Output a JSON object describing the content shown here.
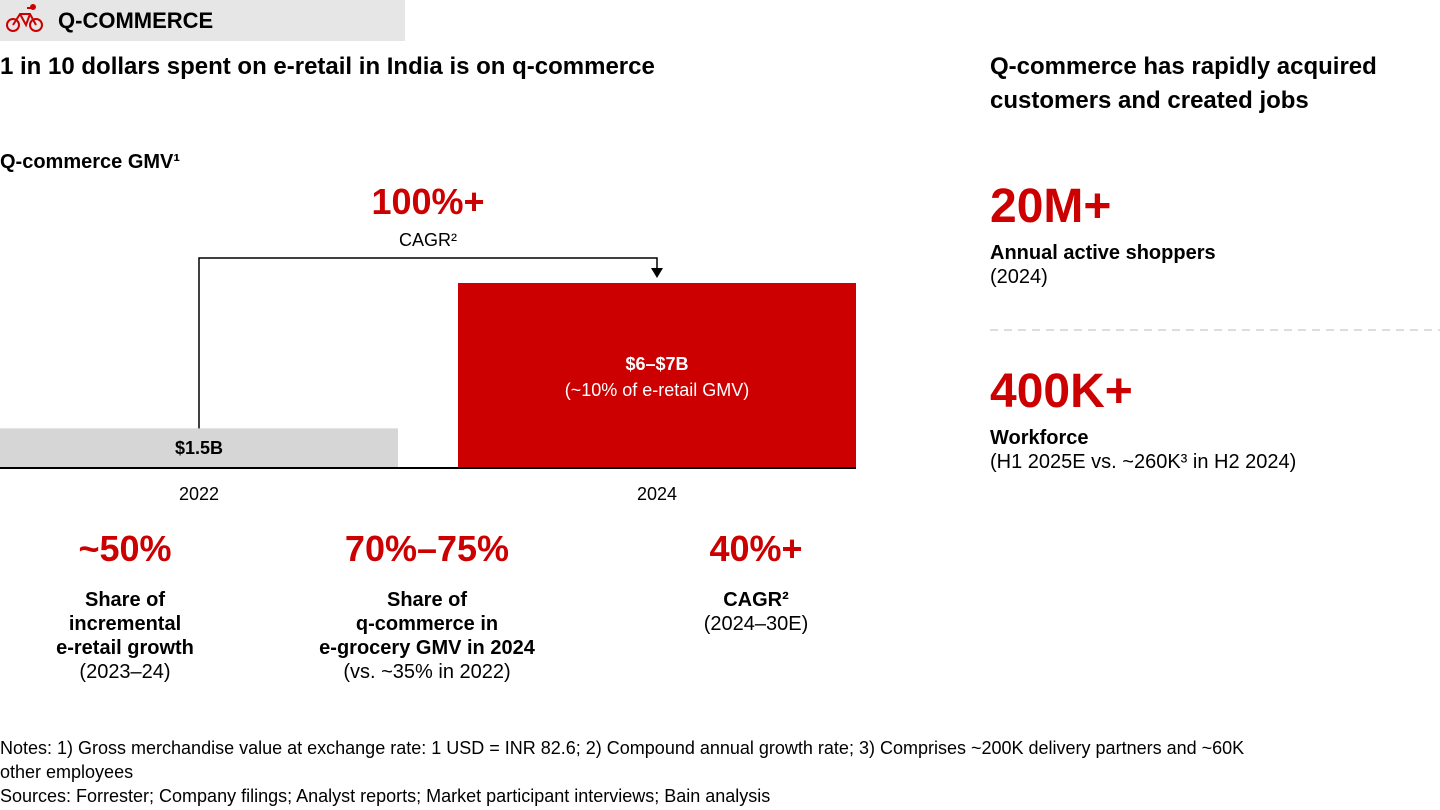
{
  "header": {
    "label": "Q-COMMERCE"
  },
  "title_left": "1 in 10 dollars spent on e-retail in India is on q-commerce",
  "title_right": [
    "Q-commerce has rapidly acquired",
    "customers and created jobs"
  ],
  "chart_data": {
    "type": "bar",
    "title": "Q-commerce GMV¹",
    "categories": [
      "2022",
      "2024"
    ],
    "values": [
      1.5,
      7
    ],
    "value_labels": [
      "$1.5B",
      "$6–$7B"
    ],
    "annotations": [
      null,
      "(~10% of e-retail GMV)"
    ],
    "colors": [
      "#d6d6d6",
      "#cc0000"
    ],
    "growth": {
      "value": "100%+",
      "label": "CAGR²"
    }
  },
  "stats": [
    {
      "value": "~50%",
      "label": [
        "Share of",
        "incremental",
        "e-retail growth"
      ],
      "note": [
        "(2023–24)"
      ]
    },
    {
      "value": "70%–75%",
      "label": [
        "Share of",
        "q-commerce in",
        "e-grocery GMV in 2024"
      ],
      "note": [
        "(vs. ~35% in 2022)"
      ]
    },
    {
      "value": "40%+",
      "label": [
        "CAGR²"
      ],
      "note": [
        "(2024–30E)"
      ]
    }
  ],
  "right_stats": [
    {
      "value": "20M+",
      "label": "Annual active shoppers",
      "note": "(2024)"
    },
    {
      "value": "400K+",
      "label": "Workforce",
      "note": "(H1 2025E vs. ~260K³ in H2 2024)"
    }
  ],
  "notes": [
    "Notes: 1) Gross merchandise value at exchange rate: 1 USD = INR 82.6; 2) Compound annual growth rate; 3) Comprises ~200K delivery partners and ~60K",
    "other employees",
    "Sources: Forrester; Company filings; Analyst reports; Market participant interviews; Bain analysis"
  ]
}
